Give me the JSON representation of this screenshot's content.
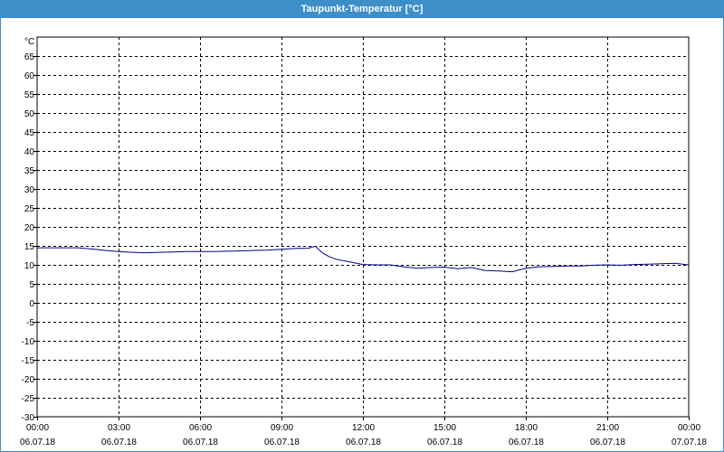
{
  "window": {
    "title": "Taupunkt-Temperatur [°C]"
  },
  "chart_data": {
    "type": "line",
    "title": "Taupunkt-Temperatur [°C]",
    "ylabel": "°C",
    "ylim": [
      -30,
      70
    ],
    "yticks": [
      65,
      60,
      55,
      50,
      45,
      40,
      35,
      30,
      25,
      20,
      15,
      10,
      5,
      0,
      -5,
      -10,
      -15,
      -20,
      -25,
      -30
    ],
    "xlim_hours": [
      0,
      24
    ],
    "xticks": [
      {
        "time": "00:00",
        "date": "06.07.18"
      },
      {
        "time": "03:00",
        "date": "06.07.18"
      },
      {
        "time": "06:00",
        "date": "06.07.18"
      },
      {
        "time": "09:00",
        "date": "06.07.18"
      },
      {
        "time": "12:00",
        "date": "06.07.18"
      },
      {
        "time": "15:00",
        "date": "06.07.18"
      },
      {
        "time": "18:00",
        "date": "06.07.18"
      },
      {
        "time": "21:00",
        "date": "06.07.18"
      },
      {
        "time": "00:00",
        "date": "07.07.18"
      }
    ],
    "grid": true,
    "colors": {
      "line": "#00008b",
      "grid": "#000000",
      "title_bar": "#3d8ec9"
    },
    "series": [
      {
        "x_hours": [
          0,
          0.5,
          1,
          1.5,
          2,
          2.5,
          3,
          3.5,
          4,
          4.5,
          5,
          5.5,
          6,
          6.5,
          7,
          7.5,
          8,
          8.5,
          9,
          9.5,
          10,
          10.25,
          10.5,
          10.75,
          11,
          11.5,
          12,
          12.5,
          13,
          13.5,
          14,
          14.5,
          15,
          15.5,
          16,
          16.5,
          17,
          17.5,
          18,
          18.5,
          19,
          19.5,
          20,
          20.5,
          21,
          21.5,
          22,
          22.5,
          23,
          23.5,
          24
        ],
        "values": [
          14.5,
          14.5,
          14.5,
          14.5,
          14.2,
          13.8,
          13.5,
          13.3,
          13.2,
          13.3,
          13.4,
          13.5,
          13.5,
          13.5,
          13.6,
          13.7,
          13.8,
          13.9,
          14.1,
          14.3,
          14.4,
          14.9,
          13.2,
          12.2,
          11.5,
          10.8,
          10.1,
          10.0,
          10.0,
          9.5,
          9.1,
          9.3,
          9.4,
          9.0,
          9.3,
          8.5,
          8.4,
          8.2,
          9.1,
          9.5,
          9.6,
          9.7,
          9.7,
          9.9,
          10.0,
          9.9,
          10.1,
          10.2,
          10.3,
          10.4,
          10.0
        ]
      }
    ]
  }
}
